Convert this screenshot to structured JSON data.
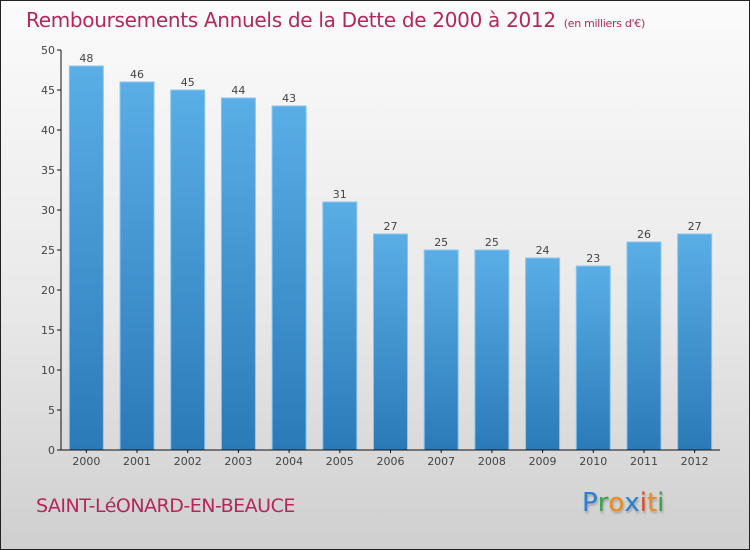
{
  "header": {
    "title": "Remboursements Annuels de la Dette de 2000 à 2012",
    "unit": "(en milliers d'€)"
  },
  "footer": {
    "commune": "SAINT-LéONARD-EN-BEAUCE",
    "logo_letters": [
      {
        "ch": "P",
        "color": "#2a7fd0"
      },
      {
        "ch": "r",
        "color": "#3aa14a"
      },
      {
        "ch": "o",
        "color": "#f08a1c"
      },
      {
        "ch": "x",
        "color": "#2a7fd0"
      },
      {
        "ch": "i",
        "color": "#e8461e"
      },
      {
        "ch": "t",
        "color": "#f08a1c"
      },
      {
        "ch": "i",
        "color": "#3aa14a"
      }
    ]
  },
  "colors": {
    "accent": "#b5275a",
    "bar_top": "#5aaee6",
    "bar_bottom": "#2a7ab8"
  },
  "chart_data": {
    "type": "bar",
    "title": "Remboursements Annuels de la Dette de 2000 à 2012",
    "subtitle": "(en milliers d'€)",
    "xlabel": "",
    "ylabel": "",
    "categories": [
      "2000",
      "2001",
      "2002",
      "2003",
      "2004",
      "2005",
      "2006",
      "2007",
      "2008",
      "2009",
      "2010",
      "2011",
      "2012"
    ],
    "values": [
      48,
      46,
      45,
      44,
      43,
      31,
      27,
      25,
      25,
      24,
      23,
      26,
      27
    ],
    "ylim": [
      0,
      50
    ],
    "yticks": [
      0,
      5,
      10,
      15,
      20,
      25,
      30,
      35,
      40,
      45,
      50
    ],
    "grid": false,
    "data_labels": true
  }
}
